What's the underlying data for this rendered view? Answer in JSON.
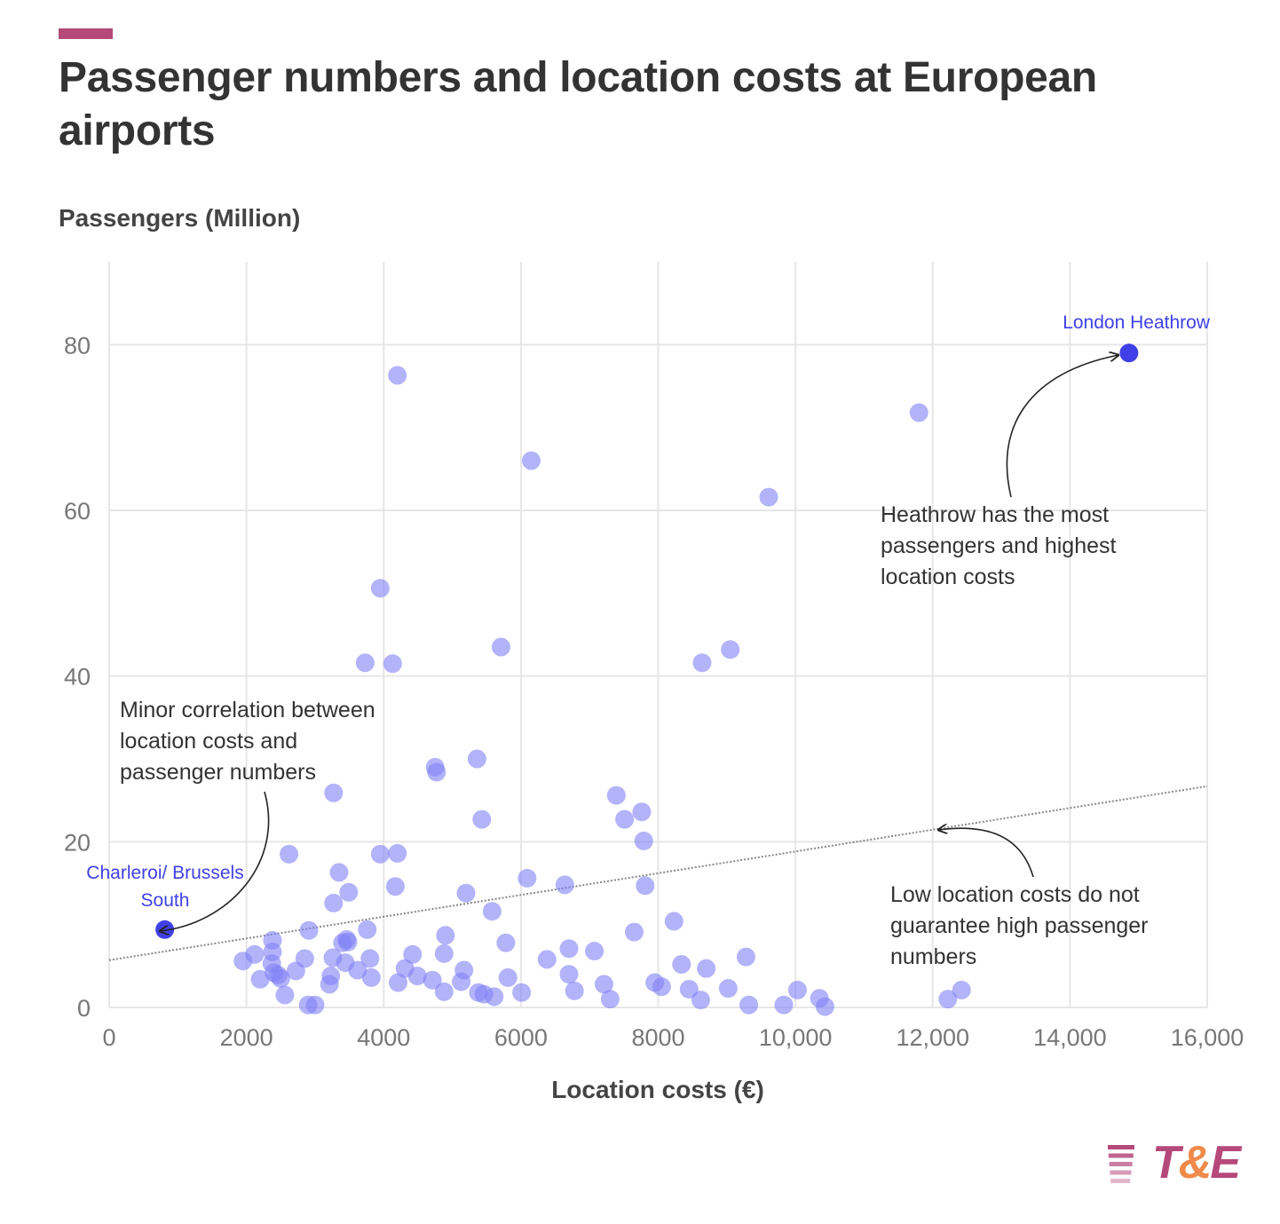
{
  "title": "Passenger numbers and location costs at European airports",
  "colors": {
    "accent": "#b5497a",
    "point": "#8080f5",
    "highlight": "#4040e6",
    "grid": "#e6e6e6",
    "trend": "#888888",
    "logo_pink": "#b5497a",
    "logo_orange": "#ef8a4b"
  },
  "logo": {
    "text": "T&E"
  },
  "chart_data": {
    "type": "scatter",
    "title": "Passenger numbers and location costs at European airports",
    "xlabel": "Location costs (€)",
    "ylabel": "Passengers (Million)",
    "xlim": [
      0,
      16000
    ],
    "ylim": [
      0,
      90
    ],
    "x_ticks": [
      {
        "value": 0,
        "label": "0"
      },
      {
        "value": 2000,
        "label": "2000"
      },
      {
        "value": 4000,
        "label": "4000"
      },
      {
        "value": 6000,
        "label": "6000"
      },
      {
        "value": 8000,
        "label": "8000"
      },
      {
        "value": 10000,
        "label": "10,000"
      },
      {
        "value": 12000,
        "label": "12,000"
      },
      {
        "value": 14000,
        "label": "14,000"
      },
      {
        "value": 16000,
        "label": "16,000"
      }
    ],
    "y_ticks": [
      {
        "value": 0,
        "label": "0"
      },
      {
        "value": 20,
        "label": "20"
      },
      {
        "value": 40,
        "label": "40"
      },
      {
        "value": 60,
        "label": "60"
      },
      {
        "value": 80,
        "label": "80"
      }
    ],
    "grid": true,
    "trendline": {
      "x": [
        0,
        16000
      ],
      "y": [
        5.7,
        26.7
      ]
    },
    "points": [
      [
        4200,
        76.3
      ],
      [
        6150,
        66.0
      ],
      [
        11800,
        71.8
      ],
      [
        9610,
        61.6
      ],
      [
        3950,
        50.6
      ],
      [
        3730,
        41.6
      ],
      [
        4130,
        41.5
      ],
      [
        5710,
        43.5
      ],
      [
        8640,
        41.6
      ],
      [
        9050,
        43.2
      ],
      [
        4750,
        29.0
      ],
      [
        4770,
        28.4
      ],
      [
        5360,
        30.0
      ],
      [
        3270,
        25.9
      ],
      [
        5430,
        22.7
      ],
      [
        7390,
        25.6
      ],
      [
        7510,
        22.7
      ],
      [
        7760,
        23.6
      ],
      [
        7790,
        20.1
      ],
      [
        2620,
        18.5
      ],
      [
        3950,
        18.5
      ],
      [
        4200,
        18.6
      ],
      [
        3350,
        16.3
      ],
      [
        3490,
        13.9
      ],
      [
        3270,
        12.6
      ],
      [
        4170,
        14.6
      ],
      [
        5200,
        13.8
      ],
      [
        5580,
        11.6
      ],
      [
        6090,
        15.6
      ],
      [
        6640,
        14.8
      ],
      [
        7810,
        14.7
      ],
      [
        8230,
        10.4
      ],
      [
        7650,
        9.1
      ],
      [
        2380,
        8.1
      ],
      [
        2910,
        9.3
      ],
      [
        3400,
        7.8
      ],
      [
        3460,
        8.2
      ],
      [
        3480,
        7.9
      ],
      [
        3760,
        9.4
      ],
      [
        4900,
        8.7
      ],
      [
        5780,
        7.8
      ],
      [
        1950,
        5.6
      ],
      [
        2120,
        6.4
      ],
      [
        2380,
        6.7
      ],
      [
        2370,
        5.3
      ],
      [
        2400,
        4.2
      ],
      [
        2460,
        3.9
      ],
      [
        2500,
        3.5
      ],
      [
        2200,
        3.4
      ],
      [
        2720,
        4.4
      ],
      [
        2850,
        5.9
      ],
      [
        3230,
        3.8
      ],
      [
        3260,
        6.0
      ],
      [
        3440,
        5.4
      ],
      [
        3620,
        4.5
      ],
      [
        3800,
        5.9
      ],
      [
        3820,
        3.6
      ],
      [
        4310,
        4.7
      ],
      [
        4420,
        6.4
      ],
      [
        4490,
        3.8
      ],
      [
        4710,
        3.3
      ],
      [
        4880,
        6.5
      ],
      [
        5170,
        4.5
      ],
      [
        5130,
        3.1
      ],
      [
        4880,
        1.9
      ],
      [
        4210,
        3.0
      ],
      [
        3210,
        2.8
      ],
      [
        2560,
        1.5
      ],
      [
        2900,
        0.3
      ],
      [
        3000,
        0.3
      ],
      [
        5380,
        1.8
      ],
      [
        5460,
        1.6
      ],
      [
        5610,
        1.3
      ],
      [
        5810,
        3.6
      ],
      [
        6010,
        1.8
      ],
      [
        6380,
        5.8
      ],
      [
        6700,
        7.1
      ],
      [
        6700,
        4.0
      ],
      [
        6780,
        2.0
      ],
      [
        7070,
        6.8
      ],
      [
        7210,
        2.8
      ],
      [
        7300,
        1.0
      ],
      [
        7950,
        3.0
      ],
      [
        8050,
        2.5
      ],
      [
        8340,
        5.2
      ],
      [
        8450,
        2.2
      ],
      [
        8620,
        0.9
      ],
      [
        8700,
        4.7
      ],
      [
        9020,
        2.3
      ],
      [
        9280,
        6.1
      ],
      [
        9320,
        0.3
      ],
      [
        9830,
        0.3
      ],
      [
        10030,
        2.1
      ],
      [
        10350,
        1.1
      ],
      [
        10430,
        0.1
      ],
      [
        12220,
        1.0
      ],
      [
        12420,
        2.1
      ]
    ],
    "highlighted": [
      {
        "name": "London Heathrow",
        "x": 14860,
        "y": 79.0
      },
      {
        "name": "Charleroi/ Brussels South",
        "x": 810,
        "y": 9.4
      }
    ],
    "annotations": [
      {
        "lines": [
          "Minor correlation between",
          "location costs and",
          "passenger numbers"
        ]
      },
      {
        "lines": [
          "Heathrow has the most",
          "passengers and highest",
          "location costs"
        ]
      },
      {
        "lines": [
          "Low location costs do not",
          "guarantee high passenger",
          "numbers"
        ]
      }
    ],
    "point_labels": {
      "heathrow": "London Heathrow",
      "charleroi": [
        "Charleroi/ Brussels",
        "South"
      ]
    }
  }
}
